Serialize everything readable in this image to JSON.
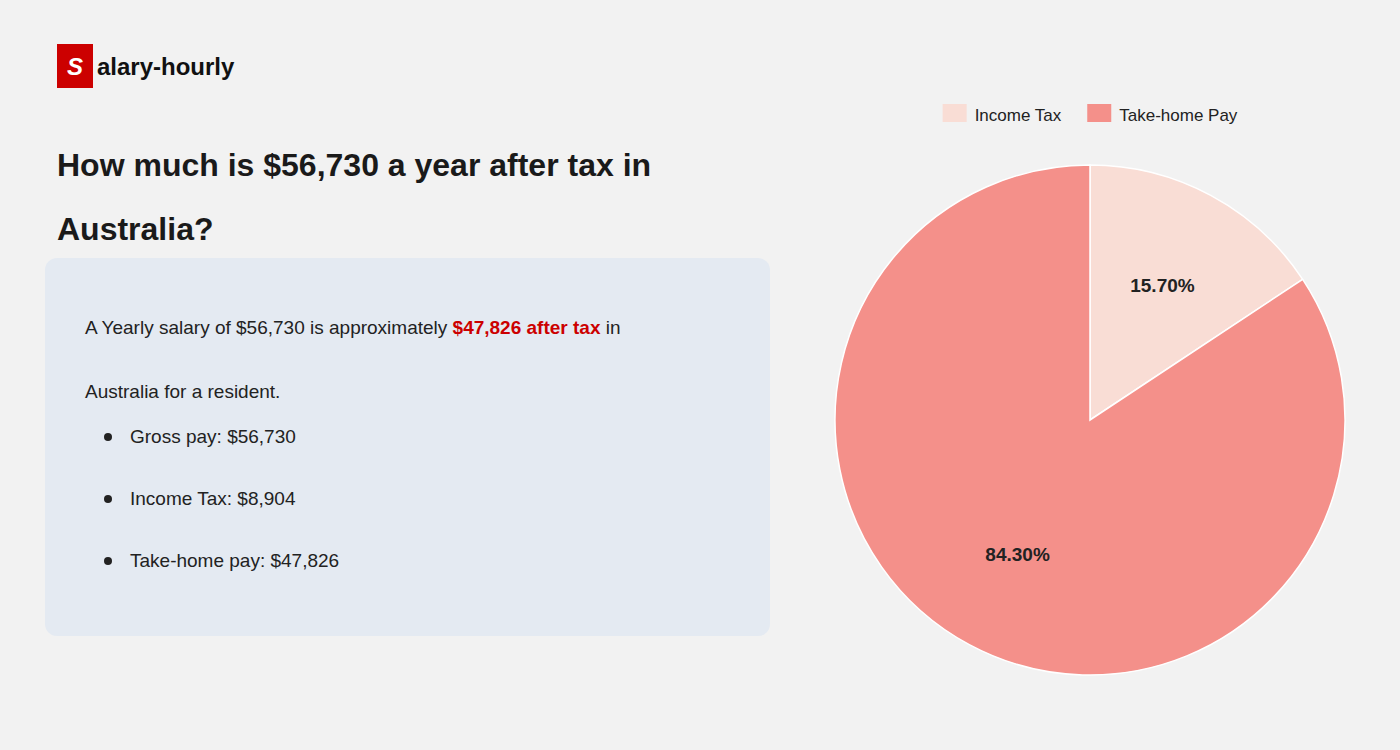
{
  "chart_data": {
    "type": "pie",
    "title": "How much is $56,730 a year after tax in Australia?",
    "categories": [
      "Income Tax",
      "Take-home Pay"
    ],
    "values": [
      15.7,
      84.3
    ],
    "value_labels": [
      "15.70%",
      "84.30%"
    ],
    "data_labels": true,
    "colors": [
      "#f9ddd5",
      "#f4908a"
    ],
    "legend": "top",
    "annotations": [
      {
        "text": "S",
        "color": "#cc0000"
      },
      {
        "text": "alary-hourly"
      },
      {
        "text": "A Yearly salary of $56,730 is approximately "
      },
      {
        "text": "$47,826 after tax",
        "color": "#cc0000"
      },
      {
        "text": " in"
      },
      {
        "text": "Australia for a resident."
      },
      {
        "text": "Gross pay: $56,730"
      },
      {
        "text": "Income Tax: $8,904"
      },
      {
        "text": "Take-home pay: $47,826"
      }
    ]
  }
}
